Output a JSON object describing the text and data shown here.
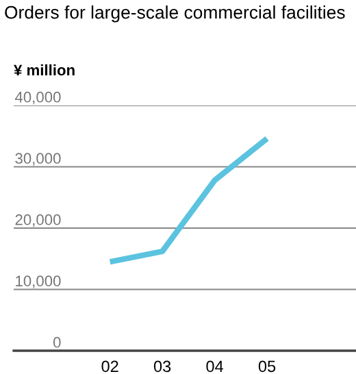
{
  "chart_data": {
    "type": "line",
    "title": "Orders for large-scale commercial facilities",
    "ylabel": "¥ million",
    "categories": [
      "02",
      "03",
      "04",
      "05"
    ],
    "series": [
      {
        "color": "#5bc3df",
        "values": [
          14500,
          16200,
          27800,
          34600
        ]
      }
    ],
    "ylim": [
      0,
      40000
    ],
    "yticks": [
      {
        "value": 0,
        "label": "0"
      },
      {
        "value": 10000,
        "label": "10,000"
      },
      {
        "value": 20000,
        "label": "20,000"
      },
      {
        "value": 30000,
        "label": "30,000"
      },
      {
        "value": 40000,
        "label": "40,000"
      }
    ],
    "grid": "y",
    "marker": "none",
    "line_style": "solid"
  }
}
